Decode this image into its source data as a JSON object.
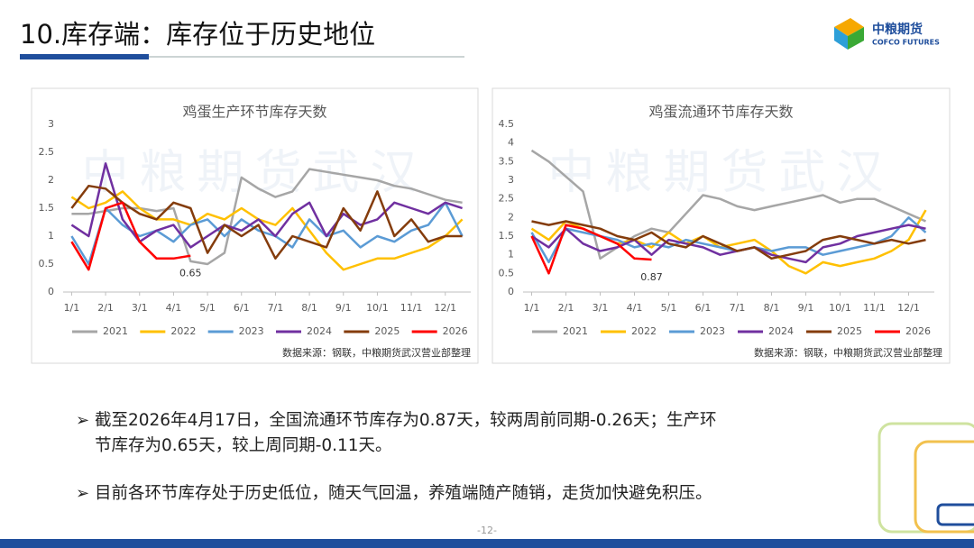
{
  "header": {
    "title": "10.库存端：库存位于历史地位",
    "logo_cn": "中粮期货",
    "logo_en": "COFCO FUTURES"
  },
  "chart_data": [
    {
      "type": "line",
      "title": "鸡蛋生产环节库存天数",
      "watermark": "中粮期货武汉",
      "source": "数据来源：钢联，中粮期货武汉营业部整理",
      "annotation": "0.65",
      "grid": false,
      "categories": [
        "1/1",
        null,
        "2/1",
        null,
        "3/1",
        null,
        "4/1",
        null,
        "5/1",
        null,
        "6/1",
        null,
        "7/1",
        null,
        "8/1",
        null,
        "9/1",
        null,
        "10/1",
        null,
        "11/1",
        null,
        "12/1",
        null
      ],
      "ylim": [
        0,
        3
      ],
      "yticks": [
        0,
        0.5,
        1,
        1.5,
        2,
        2.5,
        3
      ],
      "series": [
        {
          "name": "2021",
          "color": "#a6a6a6",
          "values": [
            1.4,
            1.4,
            1.45,
            1.5,
            1.5,
            1.45,
            1.5,
            0.55,
            0.5,
            0.7,
            2.05,
            1.85,
            1.7,
            1.8,
            2.2,
            2.15,
            2.1,
            2.05,
            2.0,
            1.9,
            1.85,
            1.75,
            1.65,
            1.6
          ]
        },
        {
          "name": "2022",
          "color": "#ffc000",
          "values": [
            1.7,
            1.5,
            1.6,
            1.8,
            1.5,
            1.3,
            1.3,
            1.2,
            1.4,
            1.3,
            1.5,
            1.3,
            1.2,
            1.5,
            1.1,
            0.7,
            0.4,
            0.5,
            0.6,
            0.6,
            0.7,
            0.8,
            1.0,
            1.3
          ]
        },
        {
          "name": "2023",
          "color": "#5b9bd5",
          "values": [
            1.0,
            0.5,
            1.5,
            1.2,
            1.0,
            1.1,
            0.9,
            1.2,
            1.3,
            1.0,
            1.3,
            1.1,
            1.0,
            0.8,
            1.3,
            1.0,
            1.1,
            0.8,
            1.0,
            0.9,
            1.1,
            1.2,
            1.6,
            1.0
          ]
        },
        {
          "name": "2024",
          "color": "#7030a0",
          "values": [
            1.2,
            1.0,
            2.3,
            1.3,
            0.9,
            1.1,
            1.2,
            0.8,
            1.0,
            1.2,
            1.1,
            1.3,
            1.0,
            1.4,
            1.6,
            1.0,
            1.4,
            1.2,
            1.3,
            1.6,
            1.5,
            1.4,
            1.6,
            1.5
          ]
        },
        {
          "name": "2025",
          "color": "#843c0c",
          "values": [
            1.5,
            1.9,
            1.85,
            1.6,
            1.4,
            1.3,
            1.6,
            1.5,
            0.7,
            1.2,
            1.0,
            1.2,
            0.6,
            1.0,
            0.9,
            0.8,
            1.5,
            1.1,
            1.8,
            1.0,
            1.3,
            0.9,
            1.0,
            1.0
          ]
        },
        {
          "name": "2026",
          "color": "#ff0000",
          "values": [
            0.9,
            0.4,
            1.5,
            1.6,
            0.9,
            0.6,
            0.6,
            0.65,
            null,
            null,
            null,
            null,
            null,
            null,
            null,
            null,
            null,
            null,
            null,
            null,
            null,
            null,
            null,
            null
          ]
        }
      ]
    },
    {
      "type": "line",
      "title": "鸡蛋流通环节库存天数",
      "watermark": "中粮期货武汉",
      "source": "数据来源：钢联，中粮期货武汉营业部整理",
      "annotation": "0.87",
      "grid": false,
      "categories": [
        "1/1",
        null,
        "2/1",
        null,
        "3/1",
        null,
        "4/1",
        null,
        "5/1",
        null,
        "6/1",
        null,
        "7/1",
        null,
        "8/1",
        null,
        "9/1",
        null,
        "10/1",
        null,
        "11/1",
        null,
        "12/1",
        null
      ],
      "ylim": [
        0,
        4.5
      ],
      "yticks": [
        0,
        0.5,
        1,
        1.5,
        2,
        2.5,
        3,
        3.5,
        4,
        4.5
      ],
      "series": [
        {
          "name": "2021",
          "color": "#a6a6a6",
          "values": [
            3.8,
            3.5,
            3.1,
            2.7,
            0.9,
            1.2,
            1.5,
            1.7,
            1.6,
            2.1,
            2.6,
            2.5,
            2.3,
            2.2,
            2.3,
            2.4,
            2.5,
            2.6,
            2.4,
            2.5,
            2.5,
            2.3,
            2.1,
            1.9
          ]
        },
        {
          "name": "2022",
          "color": "#ffc000",
          "values": [
            1.7,
            1.4,
            1.9,
            1.7,
            1.5,
            1.3,
            1.4,
            1.2,
            1.6,
            1.3,
            1.5,
            1.2,
            1.3,
            1.4,
            1.1,
            0.7,
            0.5,
            0.8,
            0.7,
            0.8,
            0.9,
            1.1,
            1.4,
            2.2
          ]
        },
        {
          "name": "2023",
          "color": "#5b9bd5",
          "values": [
            1.6,
            0.8,
            1.7,
            1.6,
            1.5,
            1.4,
            1.2,
            1.3,
            1.2,
            1.4,
            1.3,
            1.2,
            1.1,
            1.2,
            1.1,
            1.2,
            1.2,
            1.0,
            1.1,
            1.2,
            1.3,
            1.5,
            2.0,
            1.6
          ]
        },
        {
          "name": "2024",
          "color": "#7030a0",
          "values": [
            1.5,
            1.2,
            1.7,
            1.3,
            1.1,
            1.2,
            1.4,
            1.0,
            1.4,
            1.3,
            1.2,
            1.0,
            1.1,
            1.2,
            1.0,
            0.9,
            0.8,
            1.2,
            1.3,
            1.5,
            1.6,
            1.7,
            1.8,
            1.7
          ]
        },
        {
          "name": "2025",
          "color": "#843c0c",
          "values": [
            1.9,
            1.8,
            1.9,
            1.8,
            1.7,
            1.5,
            1.4,
            1.6,
            1.3,
            1.2,
            1.5,
            1.3,
            1.1,
            1.2,
            0.9,
            1.0,
            1.1,
            1.4,
            1.5,
            1.4,
            1.3,
            1.4,
            1.3,
            1.4
          ]
        },
        {
          "name": "2026",
          "color": "#ff0000",
          "values": [
            1.5,
            0.5,
            1.8,
            1.7,
            1.5,
            1.3,
            0.9,
            0.87,
            null,
            null,
            null,
            null,
            null,
            null,
            null,
            null,
            null,
            null,
            null,
            null,
            null,
            null,
            null,
            null
          ]
        }
      ]
    }
  ],
  "bullets": [
    "截至2026年4月17日，全国流通环节库存为0.87天，较两周前同期-0.26天；生产环",
    "节库存为0.65天，较上周同期-0.11天。",
    "目前各环节库存处于历史低位，随天气回温，养殖端随产随销，走货加快避免积压。"
  ],
  "page_number": "-12-"
}
